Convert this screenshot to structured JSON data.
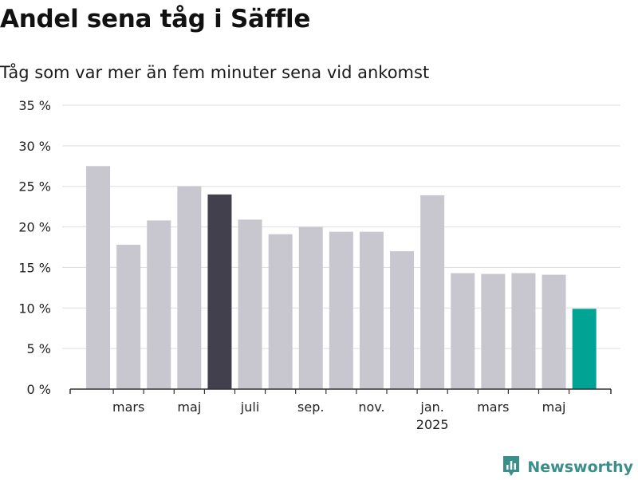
{
  "title": "Andel sena tåg i Säffle",
  "subtitle": "Tåg som var mer än fem minuter sena vid ankomst",
  "logo_text": "Newsworthy",
  "colors": {
    "bar_default": "#c8c7d0",
    "bar_highlight": "#41404c",
    "bar_latest": "#00a394",
    "grid": "#dddddd",
    "axis": "#333333",
    "text": "#222222",
    "logo": "#3a8f8a"
  },
  "chart_data": {
    "type": "bar",
    "ylim": [
      0,
      35
    ],
    "y_ticks": [
      0,
      5,
      10,
      15,
      20,
      25,
      30,
      35
    ],
    "y_tick_format": "{v} %",
    "grid": true,
    "values": [
      27.5,
      17.8,
      20.8,
      25.0,
      24.0,
      20.9,
      19.1,
      20.0,
      19.4,
      19.4,
      17.0,
      23.9,
      14.3,
      14.2,
      14.3,
      14.1,
      9.9
    ],
    "highlight_index": 4,
    "latest_index": 16,
    "x_tick_labels": [
      {
        "label": "mars",
        "position": 1.5
      },
      {
        "label": "maj",
        "position": 3.5
      },
      {
        "label": "juli",
        "position": 5.5
      },
      {
        "label": "sep.",
        "position": 7.5
      },
      {
        "label": "nov.",
        "position": 9.5
      },
      {
        "label": "jan.",
        "position": 11.5,
        "sub": "2025"
      },
      {
        "label": "mars",
        "position": 13.5
      },
      {
        "label": "maj",
        "position": 15.5
      }
    ]
  }
}
